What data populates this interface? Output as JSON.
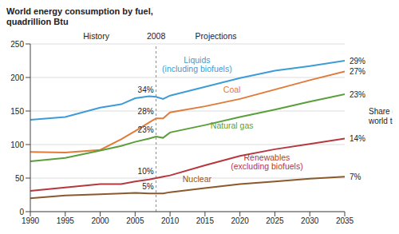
{
  "chart_data": {
    "type": "line",
    "title": "World energy consumption by fuel, quadrillion Btu",
    "x": [
      1990,
      1995,
      2000,
      2003,
      2005,
      2007,
      2008,
      2009,
      2010,
      2015,
      2020,
      2025,
      2030,
      2035
    ],
    "xlim": [
      1990,
      2035
    ],
    "xticks": [
      1990,
      1995,
      2000,
      2005,
      2010,
      2015,
      2020,
      2025,
      2030,
      2035
    ],
    "ylim": [
      0,
      250
    ],
    "yticks": [
      0,
      50,
      100,
      150,
      200,
      250
    ],
    "grid": true,
    "divider": 2008,
    "period_labels": [
      "History",
      "Projections"
    ],
    "share_title": "Share of world total",
    "share_x": [
      2008,
      2035
    ],
    "series": [
      {
        "name": "Liquids (including biofuels)",
        "color": "#3d9cd8",
        "values": [
          137,
          141,
          155,
          160,
          169,
          172,
          171,
          168,
          173,
          186,
          199,
          210,
          217,
          225
        ],
        "shares": [
          34,
          29
        ],
        "share_labels": [
          "34%",
          "29%"
        ]
      },
      {
        "name": "Coal",
        "color": "#e07b39",
        "values": [
          89,
          88,
          92,
          108,
          120,
          133,
          139,
          139,
          148,
          157,
          168,
          182,
          196,
          209
        ],
        "shares": [
          28,
          27
        ],
        "share_labels": [
          "28%",
          "27%"
        ]
      },
      {
        "name": "Natural gas",
        "color": "#5a9f3a",
        "values": [
          75,
          80,
          91,
          98,
          104,
          109,
          112,
          110,
          118,
          129,
          141,
          152,
          164,
          175
        ],
        "shares": [
          23,
          23
        ],
        "share_labels": [
          "23%",
          "23%"
        ]
      },
      {
        "name": "Renewables (excluding biofuels)",
        "color": "#b5383e",
        "values": [
          31,
          36,
          41,
          41,
          45,
          48,
          50,
          52,
          54,
          69,
          83,
          93,
          101,
          109
        ],
        "shares": [
          10,
          14
        ],
        "share_labels": [
          "10%",
          "14%"
        ]
      },
      {
        "name": "Nuclear",
        "color": "#8b5a2b",
        "values": [
          20,
          24,
          26,
          27,
          28,
          27,
          27,
          27,
          29,
          35,
          41,
          45,
          49,
          52
        ],
        "shares": [
          5,
          7
        ],
        "share_labels": [
          "5%",
          "7%"
        ]
      }
    ]
  }
}
